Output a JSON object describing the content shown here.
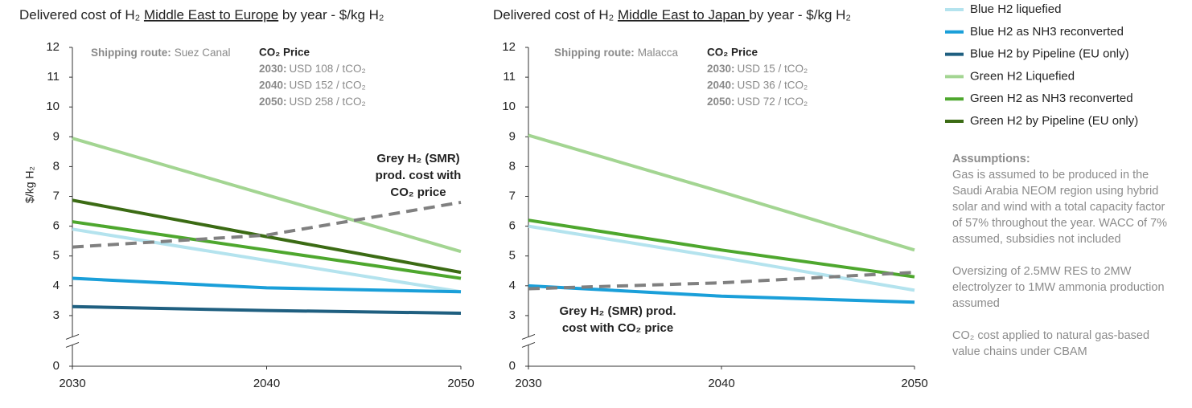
{
  "chart_data": [
    {
      "type": "line",
      "title": [
        "Delivered cost of H₂ ",
        "Middle East to Europe",
        " by year - $/kg H₂"
      ],
      "ylabel": "$/kg H₂",
      "x": [
        2030,
        2040,
        2050
      ],
      "xlim": [
        2030,
        2050
      ],
      "xticks": [
        2030,
        2040,
        2050
      ],
      "ylim": [
        0,
        12
      ],
      "yticks": [
        0,
        3,
        4,
        5,
        6,
        7,
        8,
        9,
        10,
        11,
        12
      ],
      "axis_break": true,
      "shipping_route": {
        "label": "Shipping route:",
        "value": "Suez Canal"
      },
      "co2_price": {
        "title": "CO₂ Price",
        "rows": [
          [
            "2030:",
            "USD 108 / tCO₂"
          ],
          [
            "2040:",
            "USD 152 / tCO₂"
          ],
          [
            "2050:",
            "USD 258 / tCO₂"
          ]
        ]
      },
      "series": [
        {
          "name": "Blue H2 liquefied",
          "color": "#b4e3ee",
          "values": [
            5.9,
            4.85,
            3.8
          ]
        },
        {
          "name": "Blue H2 as NH3 reconverted",
          "color": "#1a9fd9",
          "values": [
            4.25,
            3.93,
            3.8
          ]
        },
        {
          "name": "Blue H2 by Pipeline (EU only)",
          "color": "#1f5f80",
          "values": [
            3.3,
            3.17,
            3.08
          ]
        },
        {
          "name": "Green H2 Liquefied",
          "color": "#a3d592",
          "values": [
            8.95,
            7.05,
            5.15
          ]
        },
        {
          "name": "Green H2 as NH3 reconverted",
          "color": "#4ea72e",
          "values": [
            6.15,
            5.2,
            4.25
          ]
        },
        {
          "name": "Green H2 by Pipeline (EU only)",
          "color": "#3b6b14",
          "values": [
            6.87,
            5.65,
            4.45
          ]
        }
      ],
      "reference_line": {
        "label_lines": [
          "Grey H₂ (SMR)",
          "prod. cost with",
          "CO₂ price"
        ],
        "color": "#808080",
        "dashed": true,
        "values": [
          5.3,
          5.7,
          6.8
        ]
      }
    },
    {
      "type": "line",
      "title": [
        "Delivered cost of H₂ ",
        "Middle East to Japan ",
        "by year - $/kg H₂"
      ],
      "x": [
        2030,
        2040,
        2050
      ],
      "xlim": [
        2030,
        2050
      ],
      "xticks": [
        2030,
        2040,
        2050
      ],
      "ylim": [
        0,
        12
      ],
      "yticks": [
        0,
        3,
        4,
        5,
        6,
        7,
        8,
        9,
        10,
        11,
        12
      ],
      "axis_break": true,
      "shipping_route": {
        "label": "Shipping route:",
        "value": "Malacca"
      },
      "co2_price": {
        "title": "CO₂ Price",
        "rows": [
          [
            "2030:",
            "USD 15 / tCO₂"
          ],
          [
            "2040:",
            "USD 36 / tCO₂"
          ],
          [
            "2050:",
            "USD 72 / tCO₂"
          ]
        ]
      },
      "series": [
        {
          "color": "#b4e3ee",
          "values": [
            6.0,
            4.95,
            3.85
          ]
        },
        {
          "color": "#1a9fd9",
          "values": [
            4.0,
            3.65,
            3.45
          ]
        },
        {
          "color": "#a3d592",
          "values": [
            9.05,
            7.15,
            5.2
          ]
        },
        {
          "color": "#4ea72e",
          "values": [
            6.2,
            5.2,
            4.3
          ]
        }
      ],
      "reference_line": {
        "label_lines": [
          "Grey H₂ (SMR) prod.",
          "cost with CO₂ price"
        ],
        "color": "#808080",
        "dashed": true,
        "values": [
          3.9,
          4.1,
          4.45
        ]
      }
    }
  ],
  "notes": {
    "title": "Assumptions:",
    "paragraphs": [
      "Gas is assumed to be produced in the Saudi Arabia NEOM region using hybrid solar and wind with a total capacity factor of 57% throughout the year. WACC of 7% assumed, subsidies not included",
      "Oversizing of 2.5MW RES to 2MW electrolyzer to 1MW ammonia production assumed",
      "CO₂ cost applied to natural gas-based value chains under CBAM"
    ]
  }
}
